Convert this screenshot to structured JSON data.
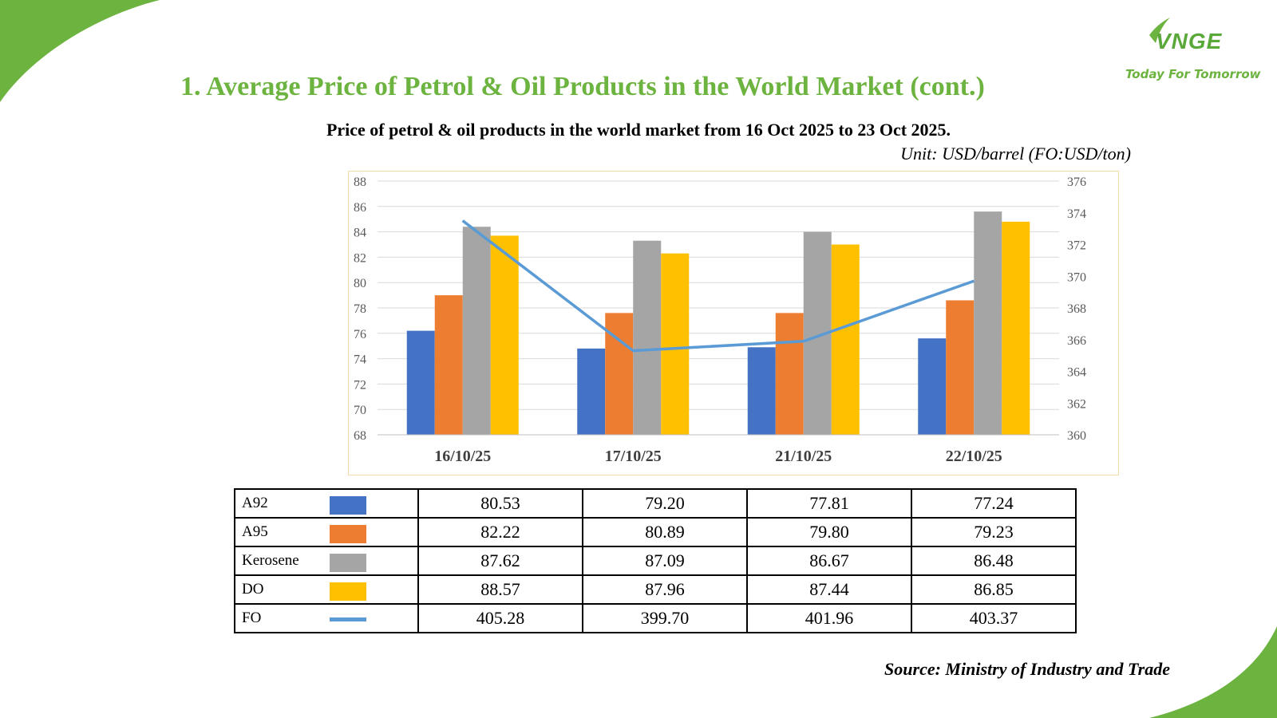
{
  "header": {
    "title": "1. Average Price of Petrol & Oil Products in the World Market (cont.)"
  },
  "logo": {
    "mark": "VNGE",
    "tagline": "Today For Tomorrow"
  },
  "colors": {
    "accent_green": "#6cb33f",
    "A92": "#4472c4",
    "A95": "#ed7d31",
    "Kerosene": "#a5a5a5",
    "DO": "#ffc000",
    "FO": "#5b9bd5"
  },
  "chart_data": {
    "type": "bar",
    "title": "Price of petrol & oil products in the world market from 16 Oct 2025 to 23 Oct 2025.",
    "unit": "Unit: USD/barrel (FO:USD/ton)",
    "categories": [
      "16/10/25",
      "17/10/25",
      "21/10/25",
      "22/10/25"
    ],
    "ylim": [
      68,
      88
    ],
    "y_ticks": [
      "68",
      "70",
      "72",
      "74",
      "76",
      "78",
      "80",
      "82",
      "84",
      "86",
      "88"
    ],
    "y2lim": [
      360,
      376
    ],
    "y2_ticks": [
      "360",
      "362",
      "364",
      "366",
      "368",
      "370",
      "372",
      "374",
      "376"
    ],
    "series": [
      {
        "name": "A92",
        "axis": "left",
        "kind": "bar",
        "values": [
          76.2,
          74.8,
          74.9,
          75.6
        ]
      },
      {
        "name": "A95",
        "axis": "left",
        "kind": "bar",
        "values": [
          79.0,
          77.6,
          77.6,
          78.6
        ]
      },
      {
        "name": "Kerosene",
        "axis": "left",
        "kind": "bar",
        "values": [
          84.4,
          83.3,
          84.0,
          85.6
        ]
      },
      {
        "name": "DO",
        "axis": "left",
        "kind": "bar",
        "values": [
          83.7,
          82.3,
          83.0,
          84.8
        ]
      },
      {
        "name": "FO",
        "axis": "right",
        "kind": "line",
        "values": [
          373.5,
          365.3,
          365.9,
          369.7
        ]
      }
    ],
    "grid": true
  },
  "table": {
    "rows": [
      {
        "label": "A92",
        "values": [
          "80.53",
          "79.20",
          "77.81",
          "77.24"
        ]
      },
      {
        "label": "A95",
        "values": [
          "82.22",
          "80.89",
          "79.80",
          "79.23"
        ]
      },
      {
        "label": "Kerosene",
        "values": [
          "87.62",
          "87.09",
          "86.67",
          "86.48"
        ]
      },
      {
        "label": "DO",
        "values": [
          "88.57",
          "87.96",
          "87.44",
          "86.85"
        ]
      },
      {
        "label": "FO",
        "values": [
          "405.28",
          "399.70",
          "401.96",
          "403.37"
        ]
      }
    ]
  },
  "footer": {
    "source": "Source: Ministry of Industry and Trade"
  }
}
